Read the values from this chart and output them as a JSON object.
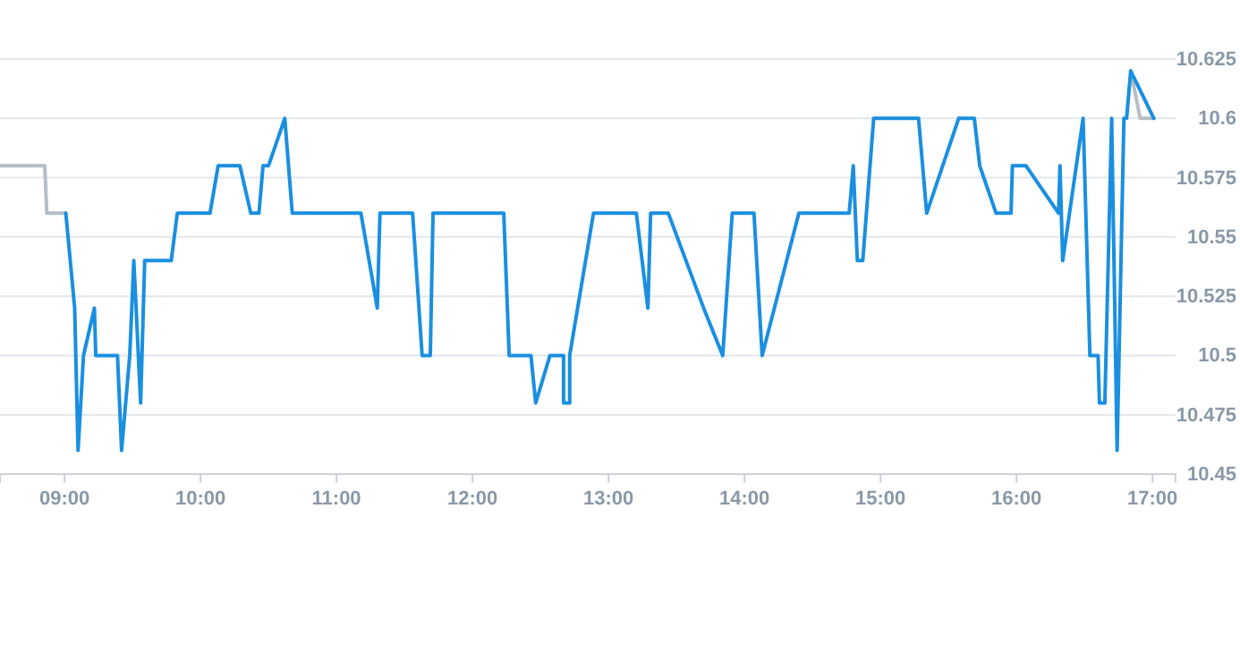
{
  "chart_data": {
    "type": "line",
    "xlim": [
      8.526,
      17.17
    ],
    "ylim": [
      10.45,
      10.625
    ],
    "xticks": [
      {
        "value": 9,
        "label": "09:00"
      },
      {
        "value": 10,
        "label": "10:00"
      },
      {
        "value": 11,
        "label": "11:00"
      },
      {
        "value": 12,
        "label": "12:00"
      },
      {
        "value": 13,
        "label": "13:00"
      },
      {
        "value": 14,
        "label": "14:00"
      },
      {
        "value": 15,
        "label": "15:00"
      },
      {
        "value": 16,
        "label": "16:00"
      },
      {
        "value": 17,
        "label": "17:00"
      }
    ],
    "yticks": [
      10.45,
      10.475,
      10.5,
      10.525,
      10.55,
      10.575,
      10.6,
      10.625
    ],
    "grid": "y",
    "line_style": "solid",
    "marker": "none",
    "series": [
      {
        "color": "#b4bec6",
        "x": [
          8.526,
          8.855,
          8.87,
          9.01
        ],
        "values": [
          10.58,
          10.58,
          10.56,
          10.56
        ]
      },
      {
        "color": "#b4bec6",
        "x": [
          16.84,
          16.91,
          17.01
        ],
        "values": [
          10.62,
          10.6,
          10.6
        ]
      },
      {
        "color": "#1a8fe0",
        "x": [
          9.01,
          9.075,
          9.1,
          9.14,
          9.22,
          9.23,
          9.39,
          9.42,
          9.48,
          9.51,
          9.56,
          9.59,
          9.785,
          9.83,
          10.07,
          10.13,
          10.29,
          10.37,
          10.43,
          10.46,
          10.5,
          10.62,
          10.675,
          11.18,
          11.3,
          11.32,
          11.56,
          11.63,
          11.69,
          11.71,
          12.23,
          12.27,
          12.43,
          12.465,
          12.57,
          12.67,
          12.67,
          12.715,
          12.715,
          12.89,
          13.205,
          13.29,
          13.31,
          13.44,
          13.7,
          13.84,
          13.91,
          14.07,
          14.13,
          14.4,
          14.77,
          14.8,
          14.83,
          14.87,
          14.95,
          15.28,
          15.34,
          15.575,
          15.69,
          15.73,
          15.85,
          15.96,
          15.97,
          16.07,
          16.31,
          16.32,
          16.34,
          16.49,
          16.54,
          16.6,
          16.61,
          16.65,
          16.7,
          16.74,
          16.79,
          16.81,
          16.84,
          17.01
        ],
        "values": [
          10.56,
          10.52,
          10.46,
          10.5,
          10.52,
          10.5,
          10.5,
          10.46,
          10.5,
          10.54,
          10.48,
          10.54,
          10.54,
          10.56,
          10.56,
          10.58,
          10.58,
          10.56,
          10.56,
          10.58,
          10.58,
          10.6,
          10.56,
          10.56,
          10.52,
          10.56,
          10.56,
          10.5,
          10.5,
          10.56,
          10.56,
          10.5,
          10.5,
          10.48,
          10.5,
          10.5,
          10.48,
          10.48,
          10.5,
          10.56,
          10.56,
          10.52,
          10.56,
          10.56,
          10.52,
          10.5,
          10.56,
          10.56,
          10.5,
          10.56,
          10.56,
          10.58,
          10.54,
          10.54,
          10.6,
          10.6,
          10.56,
          10.6,
          10.6,
          10.58,
          10.56,
          10.56,
          10.58,
          10.58,
          10.56,
          10.58,
          10.54,
          10.6,
          10.5,
          10.5,
          10.48,
          10.48,
          10.6,
          10.46,
          10.6,
          10.6,
          10.62,
          10.6
        ]
      }
    ]
  }
}
